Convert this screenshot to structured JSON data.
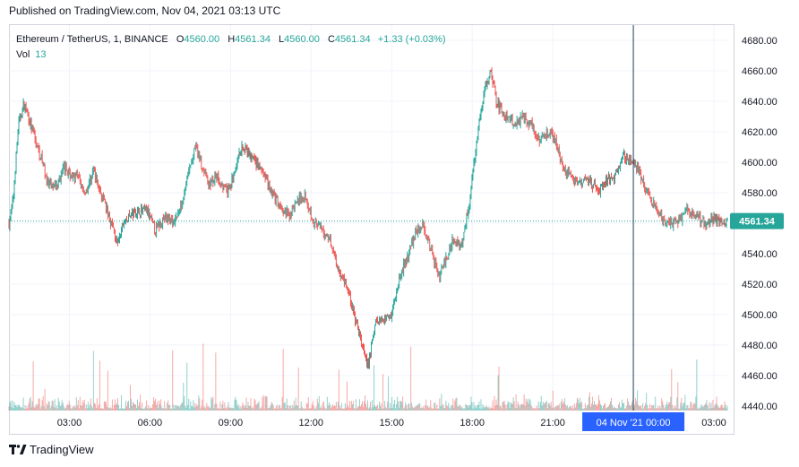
{
  "header": {
    "published": "Published on TradingView.com, Nov 04, 2021 03:13 UTC"
  },
  "legend": {
    "symbol": "Ethereum / TetherUS, 1, BINANCE",
    "open_label": "O",
    "open": "4560.00",
    "high_label": "H",
    "high": "4561.34",
    "low_label": "L",
    "low": "4560.00",
    "close_label": "C",
    "close": "4561.34",
    "change": "+1.33 (+0.03%)",
    "vol_label": "Vol",
    "vol": "13"
  },
  "brand": {
    "name": "TradingView"
  },
  "colors": {
    "up": "#26a69a",
    "down": "#ef5350",
    "grid": "#f0f3fa",
    "crosshair": "#2962ff",
    "crosshair_line": "#1c3f5f"
  },
  "chart_data": {
    "type": "candlestick",
    "title": "Ethereum / TetherUS, 1, BINANCE",
    "ylim": [
      4437,
      4690
    ],
    "y_ticks": [
      4440,
      4460,
      4480,
      4500,
      4520,
      4540,
      4560,
      4580,
      4600,
      4620,
      4640,
      4660,
      4680
    ],
    "y_tick_labels": [
      "4440.00",
      "4460.00",
      "4480.00",
      "4500.00",
      "4520.00",
      "4540.00",
      "4560.00",
      "4580.00",
      "4600.00",
      "4620.00",
      "4640.00",
      "4660.00",
      "4680.00"
    ],
    "x_ticks": [
      "03:00",
      "06:00",
      "09:00",
      "12:00",
      "15:00",
      "18:00",
      "21:00",
      "03:00"
    ],
    "x_tick_hours": [
      3,
      6,
      9,
      12,
      15,
      18,
      21,
      27
    ],
    "x_range_hours": [
      0.75,
      27.5
    ],
    "last_price": 4561.34,
    "last_price_label": "4561.34",
    "crosshair_hour": 24,
    "crosshair_label": "04 Nov '21   00:00",
    "grid": true,
    "price_path": [
      [
        0.75,
        4560
      ],
      [
        0.9,
        4575
      ],
      [
        1.1,
        4625
      ],
      [
        1.3,
        4638
      ],
      [
        1.5,
        4628
      ],
      [
        1.8,
        4610
      ],
      [
        2.0,
        4600
      ],
      [
        2.2,
        4585
      ],
      [
        2.5,
        4583
      ],
      [
        2.8,
        4597
      ],
      [
        3.0,
        4592
      ],
      [
        3.3,
        4590
      ],
      [
        3.6,
        4580
      ],
      [
        3.9,
        4595
      ],
      [
        4.1,
        4583
      ],
      [
        4.3,
        4573
      ],
      [
        4.6,
        4558
      ],
      [
        4.8,
        4545
      ],
      [
        5.0,
        4560
      ],
      [
        5.3,
        4565
      ],
      [
        5.6,
        4568
      ],
      [
        5.9,
        4568
      ],
      [
        6.2,
        4555
      ],
      [
        6.5,
        4563
      ],
      [
        6.9,
        4562
      ],
      [
        7.1,
        4568
      ],
      [
        7.4,
        4590
      ],
      [
        7.7,
        4610
      ],
      [
        7.9,
        4600
      ],
      [
        8.2,
        4585
      ],
      [
        8.5,
        4590
      ],
      [
        8.9,
        4580
      ],
      [
        9.2,
        4595
      ],
      [
        9.4,
        4610
      ],
      [
        9.7,
        4605
      ],
      [
        10.0,
        4598
      ],
      [
        10.3,
        4590
      ],
      [
        10.6,
        4578
      ],
      [
        10.9,
        4568
      ],
      [
        11.2,
        4565
      ],
      [
        11.5,
        4575
      ],
      [
        11.8,
        4578
      ],
      [
        12.1,
        4560
      ],
      [
        12.4,
        4555
      ],
      [
        12.7,
        4550
      ],
      [
        13.0,
        4530
      ],
      [
        13.3,
        4520
      ],
      [
        13.6,
        4500
      ],
      [
        13.9,
        4480
      ],
      [
        14.1,
        4465
      ],
      [
        14.4,
        4495
      ],
      [
        14.7,
        4497
      ],
      [
        15.0,
        4500
      ],
      [
        15.3,
        4525
      ],
      [
        15.6,
        4538
      ],
      [
        15.9,
        4555
      ],
      [
        16.2,
        4558
      ],
      [
        16.5,
        4540
      ],
      [
        16.8,
        4525
      ],
      [
        17.0,
        4535
      ],
      [
        17.3,
        4550
      ],
      [
        17.6,
        4545
      ],
      [
        17.9,
        4575
      ],
      [
        18.2,
        4620
      ],
      [
        18.5,
        4650
      ],
      [
        18.7,
        4660
      ],
      [
        18.9,
        4640
      ],
      [
        19.2,
        4630
      ],
      [
        19.6,
        4625
      ],
      [
        19.9,
        4630
      ],
      [
        20.2,
        4625
      ],
      [
        20.5,
        4615
      ],
      [
        20.8,
        4620
      ],
      [
        21.1,
        4615
      ],
      [
        21.4,
        4595
      ],
      [
        21.7,
        4590
      ],
      [
        22.0,
        4585
      ],
      [
        22.3,
        4590
      ],
      [
        22.7,
        4580
      ],
      [
        23.0,
        4588
      ],
      [
        23.3,
        4590
      ],
      [
        23.6,
        4605
      ],
      [
        23.9,
        4600
      ],
      [
        24.2,
        4595
      ],
      [
        24.5,
        4580
      ],
      [
        24.8,
        4570
      ],
      [
        25.1,
        4562
      ],
      [
        25.4,
        4560
      ],
      [
        25.7,
        4562
      ],
      [
        26.0,
        4568
      ],
      [
        26.3,
        4565
      ],
      [
        26.7,
        4560
      ],
      [
        27.0,
        4563
      ],
      [
        27.5,
        4561.34
      ]
    ]
  }
}
